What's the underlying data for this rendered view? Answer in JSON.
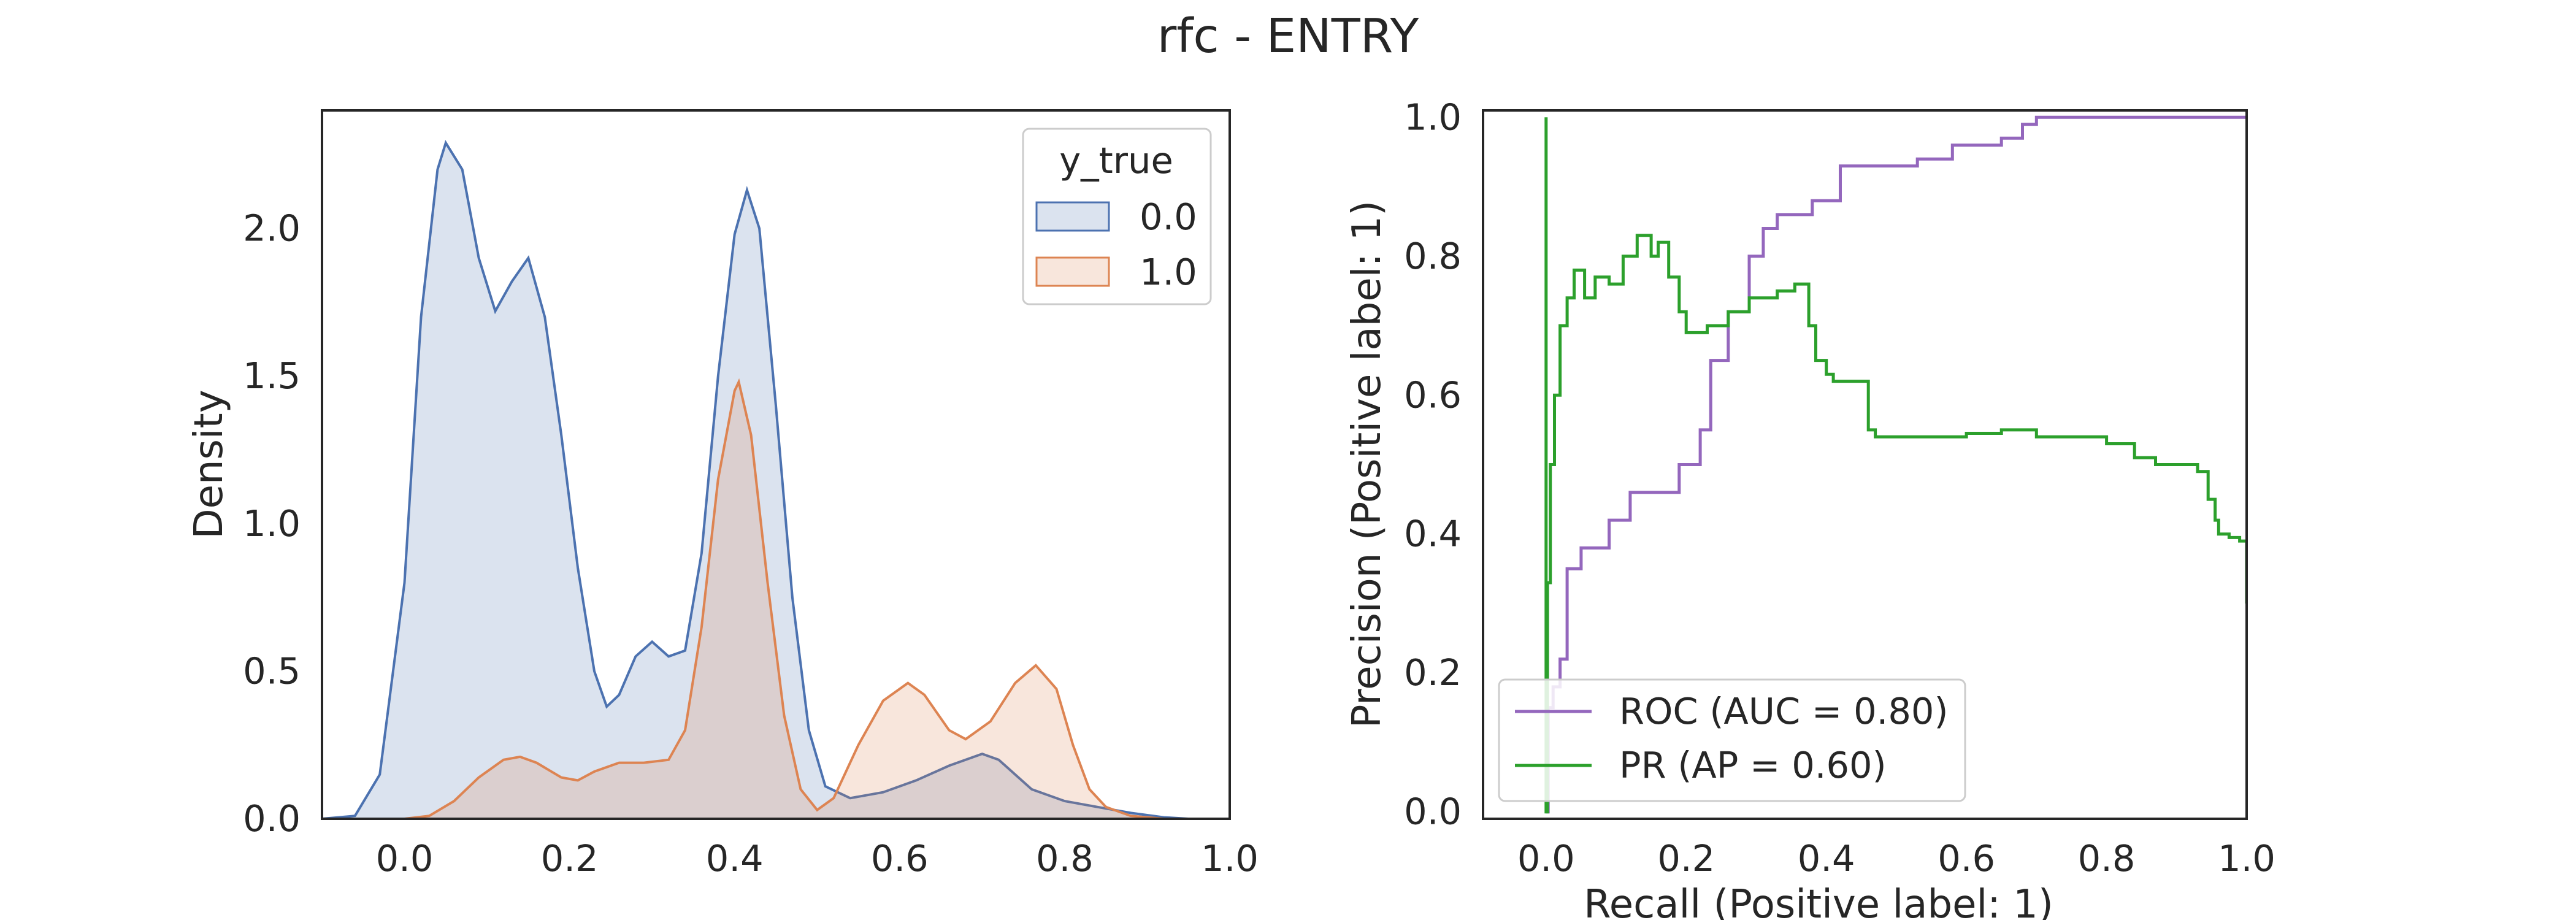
{
  "figure": {
    "title": "rfc - ENTRY"
  },
  "chart_data": [
    {
      "type": "area",
      "subtype": "kde",
      "xlabel": "",
      "ylabel": "Density",
      "xlim": [
        -0.1,
        1.0
      ],
      "ylim": [
        0,
        2.4
      ],
      "xticks": [
        "0.0",
        "0.2",
        "0.4",
        "0.6",
        "0.8",
        "1.0"
      ],
      "yticks": [
        "0.0",
        "0.5",
        "1.0",
        "1.5",
        "2.0"
      ],
      "grid": false,
      "legend": {
        "title": "y_true",
        "placement": "top-right"
      },
      "series": [
        {
          "name": "0.0",
          "line_color": "#4c72b0",
          "fill_color": "#4c72b0",
          "points": [
            [
              -0.1,
              0
            ],
            [
              -0.06,
              0.01
            ],
            [
              -0.03,
              0.15
            ],
            [
              0.0,
              0.8
            ],
            [
              0.02,
              1.7
            ],
            [
              0.04,
              2.2
            ],
            [
              0.05,
              2.29
            ],
            [
              0.07,
              2.2
            ],
            [
              0.09,
              1.9
            ],
            [
              0.11,
              1.72
            ],
            [
              0.13,
              1.82
            ],
            [
              0.15,
              1.9
            ],
            [
              0.17,
              1.7
            ],
            [
              0.19,
              1.3
            ],
            [
              0.21,
              0.85
            ],
            [
              0.23,
              0.5
            ],
            [
              0.245,
              0.38
            ],
            [
              0.26,
              0.42
            ],
            [
              0.28,
              0.55
            ],
            [
              0.3,
              0.6
            ],
            [
              0.32,
              0.55
            ],
            [
              0.34,
              0.57
            ],
            [
              0.36,
              0.9
            ],
            [
              0.38,
              1.5
            ],
            [
              0.4,
              1.98
            ],
            [
              0.415,
              2.13
            ],
            [
              0.43,
              2.0
            ],
            [
              0.45,
              1.4
            ],
            [
              0.47,
              0.75
            ],
            [
              0.49,
              0.3
            ],
            [
              0.51,
              0.11
            ],
            [
              0.54,
              0.07
            ],
            [
              0.58,
              0.09
            ],
            [
              0.62,
              0.13
            ],
            [
              0.66,
              0.18
            ],
            [
              0.7,
              0.22
            ],
            [
              0.72,
              0.2
            ],
            [
              0.76,
              0.1
            ],
            [
              0.8,
              0.06
            ],
            [
              0.84,
              0.04
            ],
            [
              0.88,
              0.02
            ],
            [
              0.92,
              0.005
            ],
            [
              0.95,
              0
            ]
          ]
        },
        {
          "name": "1.0",
          "line_color": "#dd8452",
          "fill_color": "#dd8452",
          "points": [
            [
              -0.1,
              0
            ],
            [
              0.0,
              0
            ],
            [
              0.03,
              0.01
            ],
            [
              0.06,
              0.06
            ],
            [
              0.09,
              0.14
            ],
            [
              0.12,
              0.2
            ],
            [
              0.14,
              0.21
            ],
            [
              0.16,
              0.19
            ],
            [
              0.19,
              0.14
            ],
            [
              0.21,
              0.13
            ],
            [
              0.23,
              0.16
            ],
            [
              0.26,
              0.19
            ],
            [
              0.29,
              0.19
            ],
            [
              0.32,
              0.2
            ],
            [
              0.34,
              0.3
            ],
            [
              0.36,
              0.65
            ],
            [
              0.38,
              1.15
            ],
            [
              0.4,
              1.45
            ],
            [
              0.405,
              1.48
            ],
            [
              0.42,
              1.3
            ],
            [
              0.44,
              0.8
            ],
            [
              0.46,
              0.35
            ],
            [
              0.48,
              0.1
            ],
            [
              0.5,
              0.03
            ],
            [
              0.52,
              0.07
            ],
            [
              0.55,
              0.25
            ],
            [
              0.58,
              0.4
            ],
            [
              0.61,
              0.46
            ],
            [
              0.63,
              0.42
            ],
            [
              0.66,
              0.3
            ],
            [
              0.68,
              0.27
            ],
            [
              0.71,
              0.33
            ],
            [
              0.74,
              0.46
            ],
            [
              0.765,
              0.52
            ],
            [
              0.79,
              0.44
            ],
            [
              0.81,
              0.25
            ],
            [
              0.83,
              0.1
            ],
            [
              0.85,
              0.04
            ],
            [
              0.88,
              0.01
            ],
            [
              0.92,
              0
            ]
          ]
        }
      ]
    },
    {
      "type": "line",
      "subtype": "step",
      "xlabel": "Recall (Positive label: 1)",
      "ylabel": "Precision (Positive label: 1)",
      "xlim": [
        -0.09,
        1.0
      ],
      "ylim": [
        -0.01,
        1.01
      ],
      "xticks": [
        "0.0",
        "0.2",
        "0.4",
        "0.6",
        "0.8",
        "1.0"
      ],
      "yticks": [
        "0.0",
        "0.2",
        "0.4",
        "0.6",
        "0.8",
        "1.0"
      ],
      "grid": false,
      "legend": {
        "placement": "lower-left"
      },
      "series": [
        {
          "name": "ROC (AUC = 0.80)",
          "color": "#9467bd",
          "points": [
            [
              0.0,
              0.0
            ],
            [
              0.003,
              0.0
            ],
            [
              0.003,
              0.15
            ],
            [
              0.01,
              0.15
            ],
            [
              0.01,
              0.18
            ],
            [
              0.02,
              0.18
            ],
            [
              0.02,
              0.22
            ],
            [
              0.03,
              0.22
            ],
            [
              0.03,
              0.35
            ],
            [
              0.05,
              0.35
            ],
            [
              0.05,
              0.38
            ],
            [
              0.09,
              0.38
            ],
            [
              0.09,
              0.42
            ],
            [
              0.12,
              0.42
            ],
            [
              0.12,
              0.46
            ],
            [
              0.19,
              0.46
            ],
            [
              0.19,
              0.5
            ],
            [
              0.22,
              0.5
            ],
            [
              0.22,
              0.55
            ],
            [
              0.235,
              0.55
            ],
            [
              0.235,
              0.65
            ],
            [
              0.26,
              0.65
            ],
            [
              0.26,
              0.72
            ],
            [
              0.29,
              0.72
            ],
            [
              0.29,
              0.8
            ],
            [
              0.31,
              0.8
            ],
            [
              0.31,
              0.84
            ],
            [
              0.33,
              0.84
            ],
            [
              0.33,
              0.86
            ],
            [
              0.38,
              0.86
            ],
            [
              0.38,
              0.88
            ],
            [
              0.42,
              0.88
            ],
            [
              0.42,
              0.93
            ],
            [
              0.53,
              0.93
            ],
            [
              0.53,
              0.94
            ],
            [
              0.58,
              0.94
            ],
            [
              0.58,
              0.96
            ],
            [
              0.65,
              0.96
            ],
            [
              0.65,
              0.97
            ],
            [
              0.68,
              0.97
            ],
            [
              0.68,
              0.99
            ],
            [
              0.7,
              0.99
            ],
            [
              0.7,
              1.0
            ],
            [
              1.0,
              1.0
            ]
          ]
        },
        {
          "name": "PR (AP = 0.60)",
          "color": "#2ca02c",
          "points": [
            [
              0.0,
              1.0
            ],
            [
              0.0,
              0.0
            ],
            [
              0.002,
              0.0
            ],
            [
              0.002,
              0.33
            ],
            [
              0.006,
              0.33
            ],
            [
              0.006,
              0.5
            ],
            [
              0.012,
              0.5
            ],
            [
              0.012,
              0.6
            ],
            [
              0.02,
              0.6
            ],
            [
              0.02,
              0.7
            ],
            [
              0.03,
              0.7
            ],
            [
              0.03,
              0.74
            ],
            [
              0.04,
              0.74
            ],
            [
              0.04,
              0.78
            ],
            [
              0.055,
              0.78
            ],
            [
              0.055,
              0.74
            ],
            [
              0.07,
              0.74
            ],
            [
              0.07,
              0.77
            ],
            [
              0.09,
              0.77
            ],
            [
              0.09,
              0.76
            ],
            [
              0.11,
              0.76
            ],
            [
              0.11,
              0.8
            ],
            [
              0.13,
              0.8
            ],
            [
              0.13,
              0.83
            ],
            [
              0.15,
              0.83
            ],
            [
              0.15,
              0.8
            ],
            [
              0.16,
              0.8
            ],
            [
              0.16,
              0.82
            ],
            [
              0.175,
              0.82
            ],
            [
              0.175,
              0.77
            ],
            [
              0.19,
              0.77
            ],
            [
              0.19,
              0.72
            ],
            [
              0.2,
              0.72
            ],
            [
              0.2,
              0.69
            ],
            [
              0.23,
              0.69
            ],
            [
              0.23,
              0.7
            ],
            [
              0.26,
              0.7
            ],
            [
              0.26,
              0.72
            ],
            [
              0.29,
              0.72
            ],
            [
              0.29,
              0.74
            ],
            [
              0.33,
              0.74
            ],
            [
              0.33,
              0.75
            ],
            [
              0.355,
              0.75
            ],
            [
              0.355,
              0.76
            ],
            [
              0.375,
              0.76
            ],
            [
              0.375,
              0.7
            ],
            [
              0.385,
              0.7
            ],
            [
              0.385,
              0.65
            ],
            [
              0.4,
              0.65
            ],
            [
              0.4,
              0.63
            ],
            [
              0.41,
              0.63
            ],
            [
              0.41,
              0.62
            ],
            [
              0.46,
              0.62
            ],
            [
              0.46,
              0.55
            ],
            [
              0.47,
              0.55
            ],
            [
              0.47,
              0.54
            ],
            [
              0.6,
              0.54
            ],
            [
              0.6,
              0.545
            ],
            [
              0.65,
              0.545
            ],
            [
              0.65,
              0.55
            ],
            [
              0.7,
              0.55
            ],
            [
              0.7,
              0.54
            ],
            [
              0.8,
              0.54
            ],
            [
              0.8,
              0.53
            ],
            [
              0.84,
              0.53
            ],
            [
              0.84,
              0.51
            ],
            [
              0.87,
              0.51
            ],
            [
              0.87,
              0.5
            ],
            [
              0.93,
              0.5
            ],
            [
              0.93,
              0.49
            ],
            [
              0.945,
              0.49
            ],
            [
              0.945,
              0.45
            ],
            [
              0.955,
              0.45
            ],
            [
              0.955,
              0.42
            ],
            [
              0.96,
              0.42
            ],
            [
              0.96,
              0.4
            ],
            [
              0.975,
              0.4
            ],
            [
              0.975,
              0.395
            ],
            [
              0.99,
              0.395
            ],
            [
              0.99,
              0.39
            ],
            [
              1.0,
              0.39
            ],
            [
              1.0,
              0.3
            ]
          ]
        }
      ]
    }
  ]
}
